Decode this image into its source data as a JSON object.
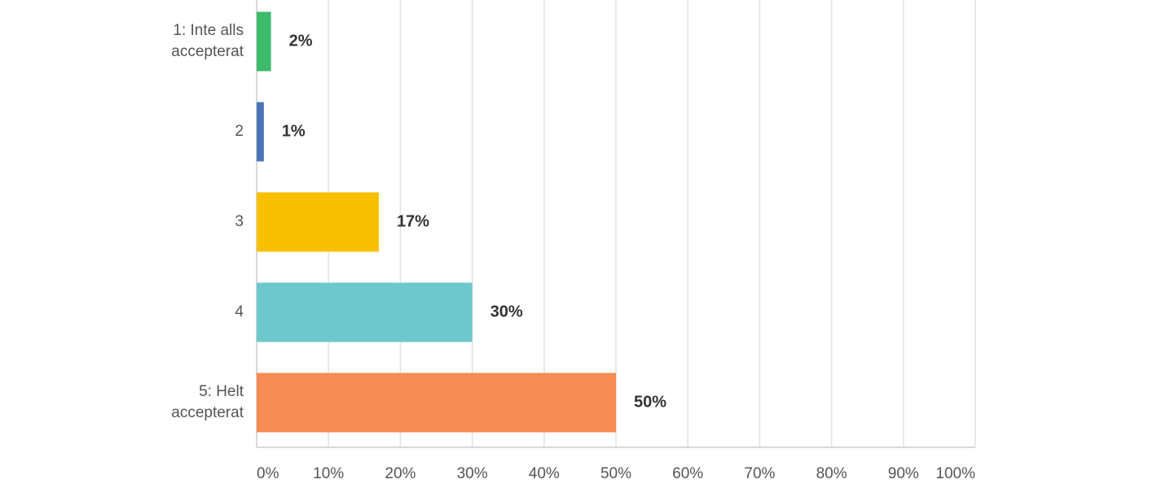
{
  "chart_data": {
    "type": "hbar",
    "categories": [
      [
        "1: Inte alls",
        "accepterat"
      ],
      "2",
      "3",
      "4",
      [
        "5: Helt",
        "accepterat"
      ]
    ],
    "values": [
      2,
      1,
      17,
      30,
      50
    ],
    "value_labels": [
      "2%",
      "1%",
      "17%",
      "30%",
      "50%"
    ],
    "colors": [
      "#3dbb6b",
      "#4a76b8",
      "#f8c100",
      "#6cc8cc",
      "#f78b54"
    ],
    "xlim": [
      0,
      100
    ],
    "xticks": [
      {
        "value": 0,
        "label": "0%"
      },
      {
        "value": 10,
        "label": "10%"
      },
      {
        "value": 20,
        "label": "20%"
      },
      {
        "value": 30,
        "label": "30%"
      },
      {
        "value": 40,
        "label": "40%"
      },
      {
        "value": 50,
        "label": "50%"
      },
      {
        "value": 60,
        "label": "60%"
      },
      {
        "value": 70,
        "label": "70%"
      },
      {
        "value": 80,
        "label": "80%"
      },
      {
        "value": 90,
        "label": "90%"
      },
      {
        "value": 100,
        "label": "100%"
      }
    ],
    "grid": true
  }
}
